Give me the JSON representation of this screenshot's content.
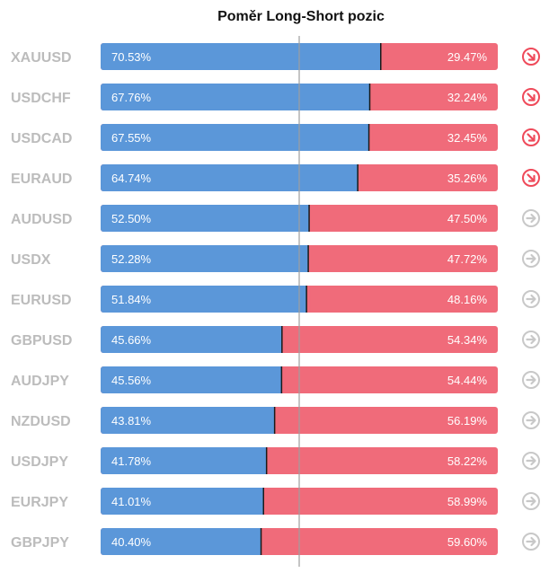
{
  "chart_data": {
    "type": "bar",
    "title": "Poměr Long-Short pozic",
    "categories": [
      "XAUUSD",
      "USDCHF",
      "USDCAD",
      "EURAUD",
      "AUDUSD",
      "USDX",
      "EURUSD",
      "GBPUSD",
      "AUDJPY",
      "NZDUSD",
      "USDJPY",
      "EURJPY",
      "GBPJPY"
    ],
    "series": [
      {
        "values": [
          70.53,
          67.76,
          67.55,
          64.74,
          52.5,
          52.28,
          51.84,
          45.66,
          45.56,
          43.81,
          41.78,
          41.01,
          40.4
        ]
      },
      {
        "values": [
          29.47,
          32.24,
          32.45,
          35.26,
          47.5,
          47.72,
          48.16,
          54.34,
          54.44,
          56.19,
          58.22,
          58.99,
          59.6
        ]
      }
    ],
    "long_labels": [
      "70.53%",
      "67.76%",
      "67.55%",
      "64.74%",
      "52.50%",
      "52.28%",
      "51.84%",
      "45.66%",
      "45.56%",
      "43.81%",
      "41.78%",
      "41.01%",
      "40.40%"
    ],
    "short_labels": [
      "29.47%",
      "32.24%",
      "32.45%",
      "35.26%",
      "47.50%",
      "47.72%",
      "48.16%",
      "54.34%",
      "54.44%",
      "56.19%",
      "58.22%",
      "58.99%",
      "59.60%"
    ],
    "signals": [
      "down",
      "down",
      "down",
      "down",
      "neutral",
      "neutral",
      "neutral",
      "neutral",
      "neutral",
      "neutral",
      "neutral",
      "neutral",
      "neutral"
    ],
    "reference_line": 50,
    "ylim": [
      0,
      100
    ]
  },
  "colors": {
    "long": "#5b97d9",
    "short": "#f06b7a",
    "signal_down": "#ef4a5a",
    "signal_neutral": "#c8c8c8",
    "divider": "#1a1a1a",
    "center_line": "#9e9e9e"
  },
  "icons": {
    "down": "arrow-down-right-icon",
    "neutral": "arrow-right-icon"
  }
}
